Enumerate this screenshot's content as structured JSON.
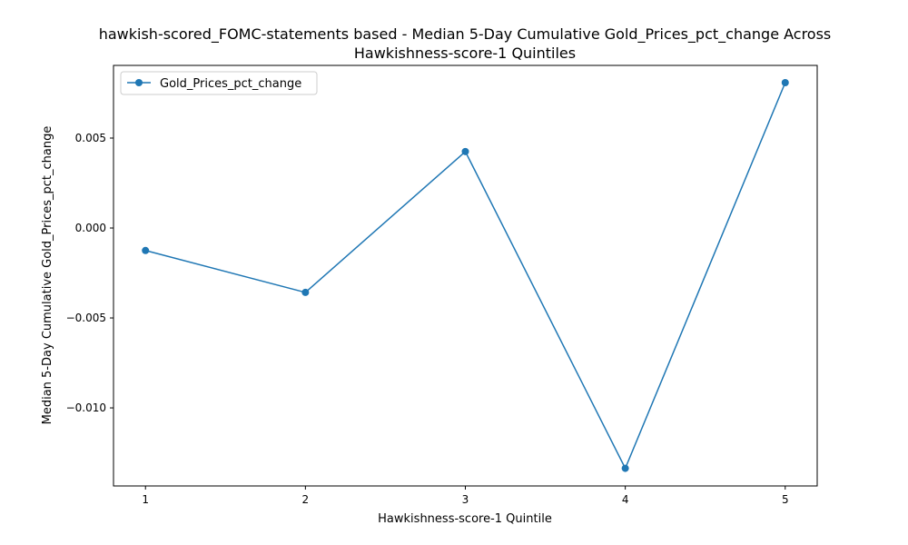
{
  "chart_data": {
    "type": "line",
    "title_lines": [
      "hawkish-scored_FOMC-statements based - Median 5-Day Cumulative Gold_Prices_pct_change Across",
      "Hawkishness-score-1 Quintiles"
    ],
    "xlabel": "Hawkishness-score-1 Quintile",
    "ylabel": "Median 5-Day Cumulative Gold_Prices_pct_change",
    "x": [
      1,
      2,
      3,
      4,
      5
    ],
    "x_tick_labels": [
      "1",
      "2",
      "3",
      "4",
      "5"
    ],
    "xlim": [
      0.8,
      5.2
    ],
    "ylim": [
      -0.01434,
      0.00904
    ],
    "y_ticks": [
      0.005,
      0.0,
      -0.005,
      -0.01
    ],
    "y_tick_labels": [
      "0.005",
      "0.000",
      "−0.005",
      "−0.010"
    ],
    "grid": false,
    "legend_position": "upper-left",
    "series": [
      {
        "name": "Gold_Prices_pct_change",
        "marker": "circle",
        "color": "#1f77b4",
        "values": [
          -0.00125,
          -0.00358,
          0.00425,
          -0.01336,
          0.00808
        ]
      }
    ]
  }
}
